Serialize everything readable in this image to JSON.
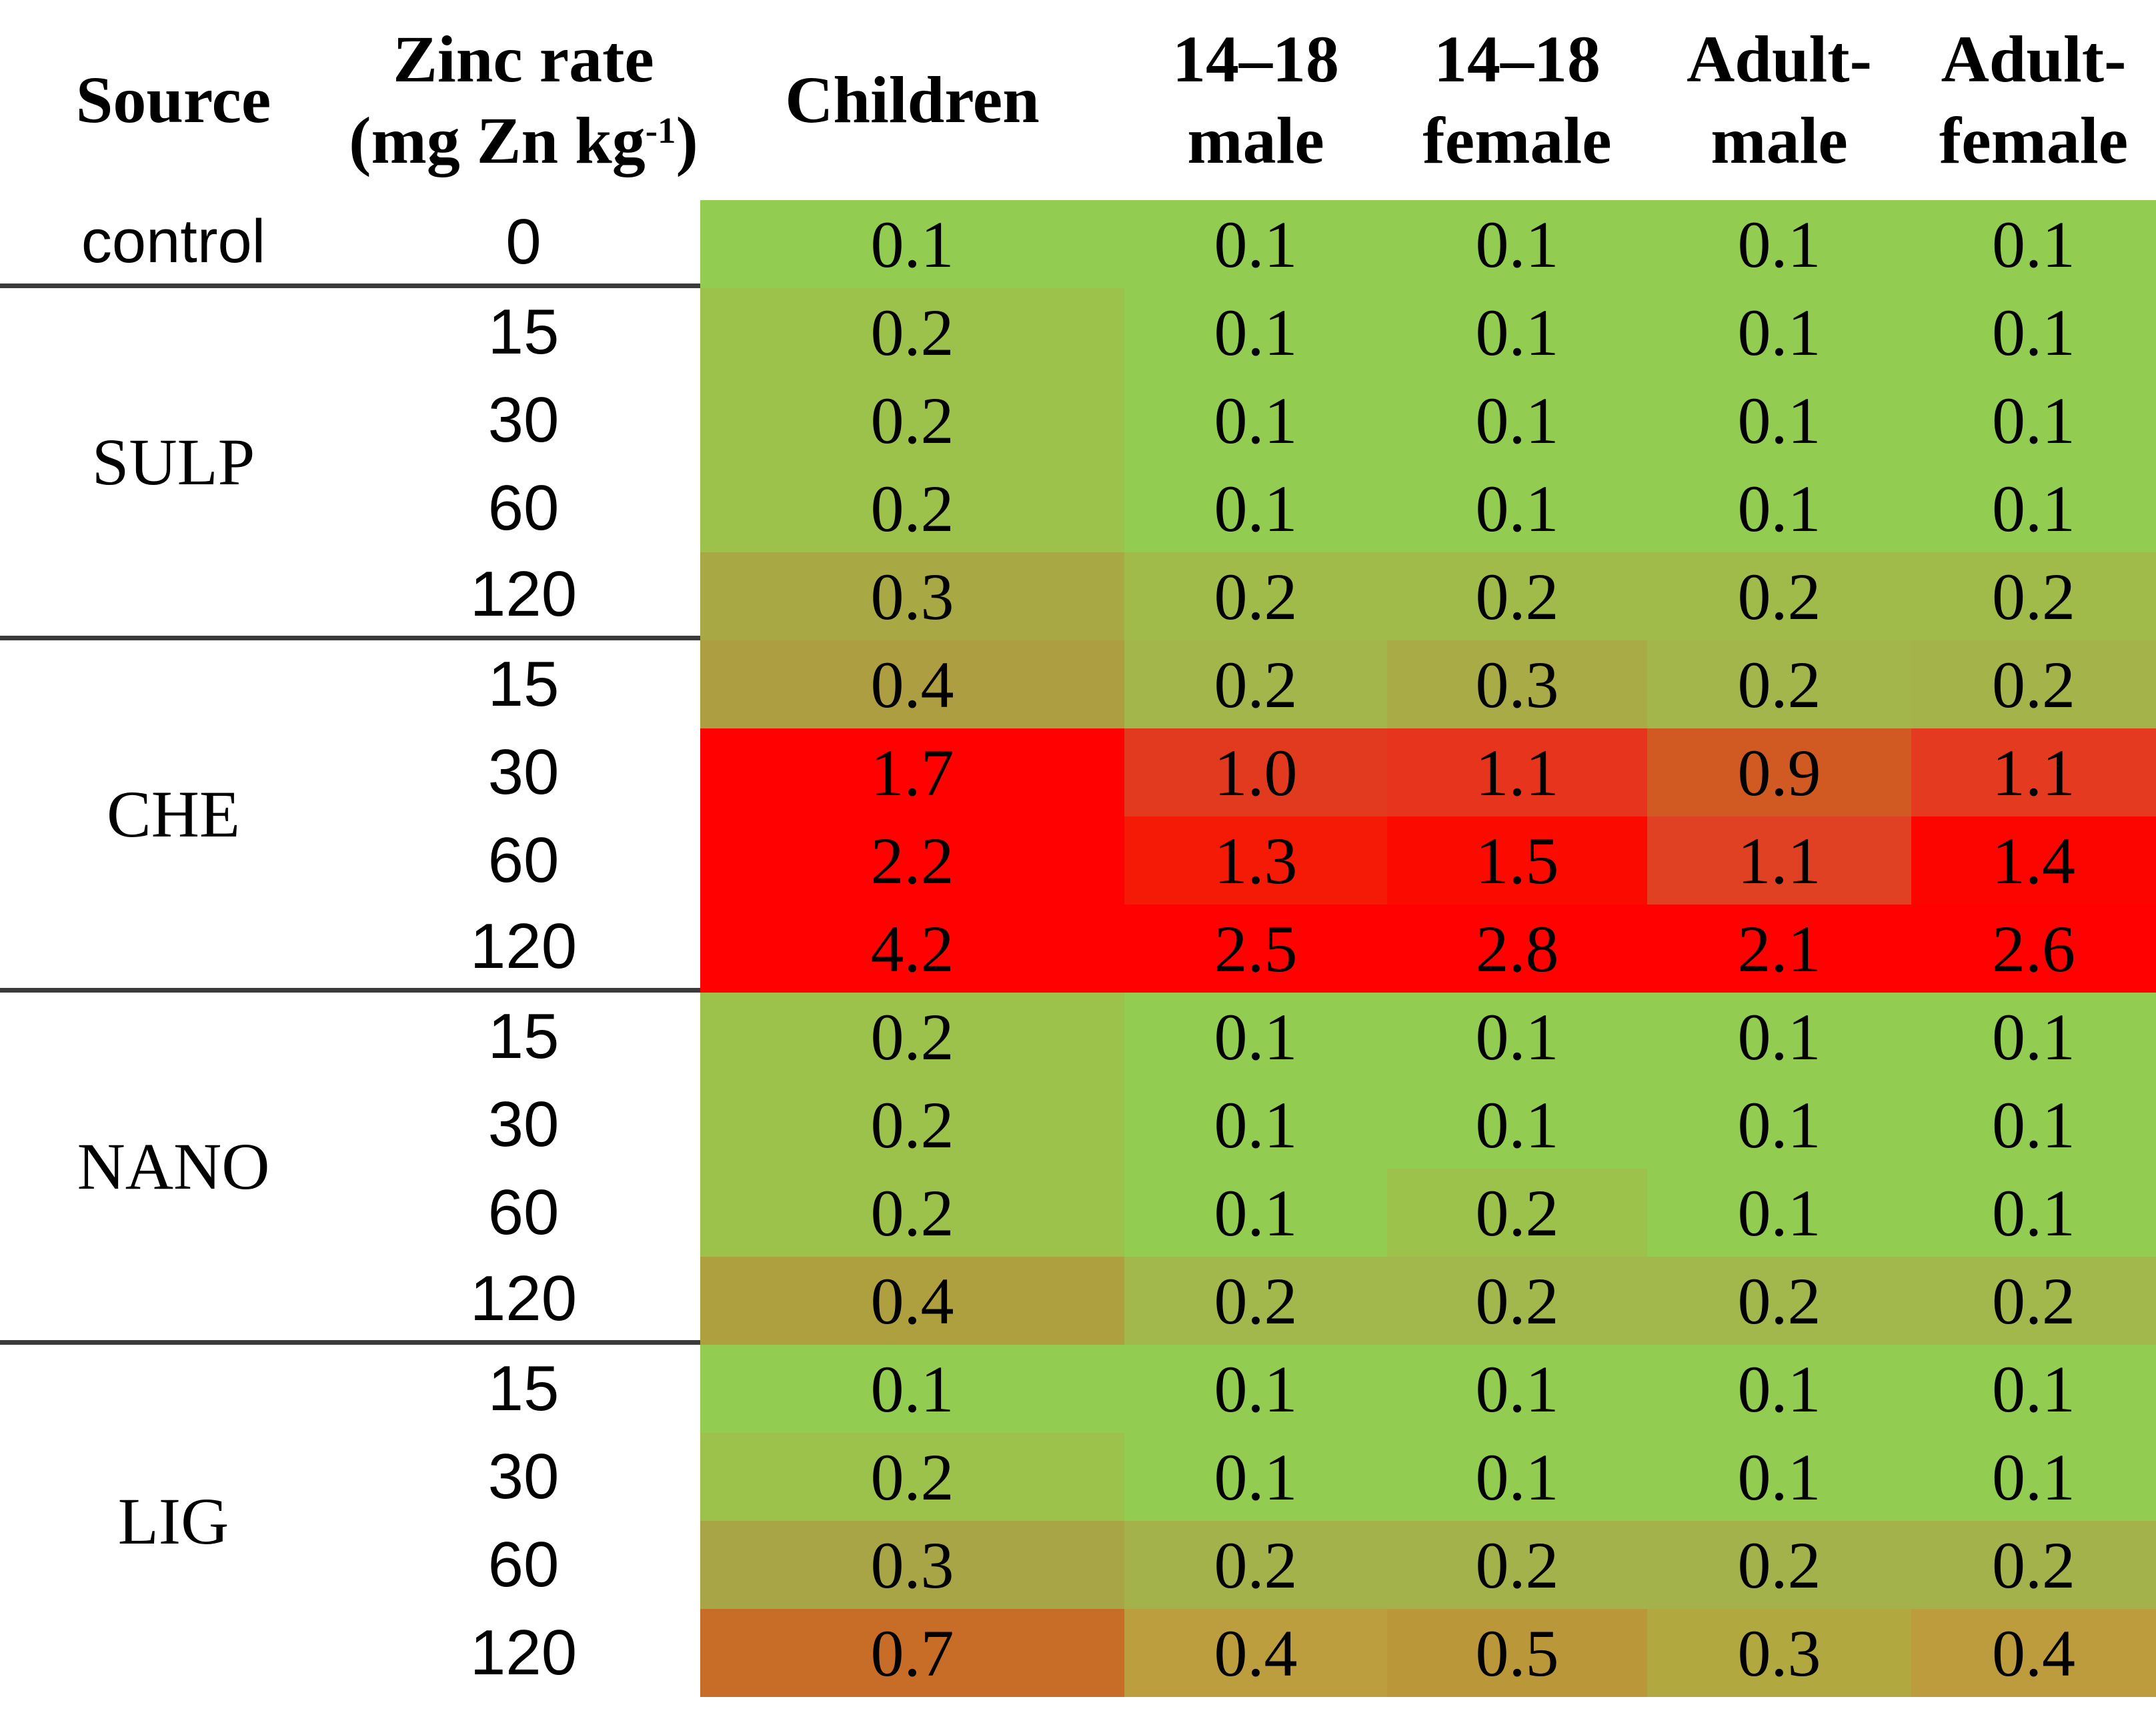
{
  "table": {
    "headers": {
      "source": "Source",
      "zinc_rate": {
        "line1": "Zinc rate",
        "unit_pre": "(mg Zn kg",
        "unit_sup": "-1",
        "unit_post": ")"
      },
      "children": "Children",
      "male_14_18": {
        "line1": "14–18",
        "line2": "male"
      },
      "female_14_18": {
        "line1": "14–18",
        "line2": "female"
      },
      "adult_male": {
        "line1": "Adult-",
        "line2": "male"
      },
      "adult_female": {
        "line1": "Adult-",
        "line2": "female"
      }
    },
    "groups": [
      {
        "source": "control",
        "source_font": "sans",
        "separator_after": true,
        "rows": [
          {
            "rate": "0",
            "cells": [
              {
                "v": "0.1",
                "bg": "#92CC50"
              },
              {
                "v": "0.1",
                "bg": "#92CC50"
              },
              {
                "v": "0.1",
                "bg": "#92CC50"
              },
              {
                "v": "0.1",
                "bg": "#92CC50"
              },
              {
                "v": "0.1",
                "bg": "#92CC50"
              }
            ]
          }
        ]
      },
      {
        "source": "SULP",
        "source_font": "serif",
        "separator_after": true,
        "rows": [
          {
            "rate": "15",
            "cells": [
              {
                "v": "0.2",
                "bg": "#9CC24C"
              },
              {
                "v": "0.1",
                "bg": "#92CC50"
              },
              {
                "v": "0.1",
                "bg": "#92CC50"
              },
              {
                "v": "0.1",
                "bg": "#92CC50"
              },
              {
                "v": "0.1",
                "bg": "#92CC50"
              }
            ]
          },
          {
            "rate": "30",
            "cells": [
              {
                "v": "0.2",
                "bg": "#9CC24C"
              },
              {
                "v": "0.1",
                "bg": "#92CC50"
              },
              {
                "v": "0.1",
                "bg": "#92CC50"
              },
              {
                "v": "0.1",
                "bg": "#92CC50"
              },
              {
                "v": "0.1",
                "bg": "#92CC50"
              }
            ]
          },
          {
            "rate": "60",
            "cells": [
              {
                "v": "0.2",
                "bg": "#9CC24C"
              },
              {
                "v": "0.1",
                "bg": "#92CC50"
              },
              {
                "v": "0.1",
                "bg": "#92CC50"
              },
              {
                "v": "0.1",
                "bg": "#92CC50"
              },
              {
                "v": "0.1",
                "bg": "#92CC50"
              }
            ]
          },
          {
            "rate": "120",
            "cells": [
              {
                "v": "0.3",
                "bg": "#A8A945"
              },
              {
                "v": "0.2",
                "bg": "#A0BB4A"
              },
              {
                "v": "0.2",
                "bg": "#A0BB4A"
              },
              {
                "v": "0.2",
                "bg": "#A0BB4A"
              },
              {
                "v": "0.2",
                "bg": "#A0BB4A"
              }
            ]
          }
        ]
      },
      {
        "source": "CHE",
        "source_font": "serif",
        "separator_after": true,
        "rows": [
          {
            "rate": "15",
            "cells": [
              {
                "v": "0.4",
                "bg": "#AC9E41"
              },
              {
                "v": "0.2",
                "bg": "#A3B64B"
              },
              {
                "v": "0.3",
                "bg": "#A9AB46"
              },
              {
                "v": "0.2",
                "bg": "#A3B64B"
              },
              {
                "v": "0.2",
                "bg": "#A4B44A"
              }
            ]
          },
          {
            "rate": "30",
            "cells": [
              {
                "v": "1.7",
                "bg": "#FE0100"
              },
              {
                "v": "1.0",
                "bg": "#E23A1E"
              },
              {
                "v": "1.1",
                "bg": "#E7341C"
              },
              {
                "v": "0.9",
                "bg": "#D05A22"
              },
              {
                "v": "1.1",
                "bg": "#E43A20"
              }
            ]
          },
          {
            "rate": "60",
            "cells": [
              {
                "v": "2.2",
                "bg": "#FE0100"
              },
              {
                "v": "1.3",
                "bg": "#F41A06"
              },
              {
                "v": "1.5",
                "bg": "#FB0A00"
              },
              {
                "v": "1.1",
                "bg": "#E04122"
              },
              {
                "v": "1.4",
                "bg": "#FC0500"
              }
            ]
          },
          {
            "rate": "120",
            "cells": [
              {
                "v": "4.2",
                "bg": "#FE0100"
              },
              {
                "v": "2.5",
                "bg": "#FE0100"
              },
              {
                "v": "2.8",
                "bg": "#FE0100"
              },
              {
                "v": "2.1",
                "bg": "#FE0100"
              },
              {
                "v": "2.6",
                "bg": "#FE0100"
              }
            ]
          }
        ]
      },
      {
        "source": "NANO",
        "source_font": "serif",
        "separator_after": true,
        "rows": [
          {
            "rate": "15",
            "cells": [
              {
                "v": "0.2",
                "bg": "#9CC24C"
              },
              {
                "v": "0.1",
                "bg": "#92CC50"
              },
              {
                "v": "0.1",
                "bg": "#92CC50"
              },
              {
                "v": "0.1",
                "bg": "#92CC50"
              },
              {
                "v": "0.1",
                "bg": "#92CC50"
              }
            ]
          },
          {
            "rate": "30",
            "cells": [
              {
                "v": "0.2",
                "bg": "#9CC24C"
              },
              {
                "v": "0.1",
                "bg": "#92CC50"
              },
              {
                "v": "0.1",
                "bg": "#92CC50"
              },
              {
                "v": "0.1",
                "bg": "#92CC50"
              },
              {
                "v": "0.1",
                "bg": "#92CC50"
              }
            ]
          },
          {
            "rate": "60",
            "cells": [
              {
                "v": "0.2",
                "bg": "#9CC24C"
              },
              {
                "v": "0.1",
                "bg": "#92CC50"
              },
              {
                "v": "0.2",
                "bg": "#9CC24C"
              },
              {
                "v": "0.1",
                "bg": "#92CC50"
              },
              {
                "v": "0.1",
                "bg": "#92CC50"
              }
            ]
          },
          {
            "rate": "120",
            "cells": [
              {
                "v": "0.4",
                "bg": "#AFA03F"
              },
              {
                "v": "0.2",
                "bg": "#A3B84C"
              },
              {
                "v": "0.2",
                "bg": "#A3B84C"
              },
              {
                "v": "0.2",
                "bg": "#A3B84C"
              },
              {
                "v": "0.2",
                "bg": "#A3B84C"
              }
            ]
          }
        ]
      },
      {
        "source": "LIG",
        "source_font": "serif",
        "separator_after": false,
        "rows": [
          {
            "rate": "15",
            "cells": [
              {
                "v": "0.1",
                "bg": "#92CC50"
              },
              {
                "v": "0.1",
                "bg": "#92CC50"
              },
              {
                "v": "0.1",
                "bg": "#92CC50"
              },
              {
                "v": "0.1",
                "bg": "#92CC50"
              },
              {
                "v": "0.1",
                "bg": "#92CC50"
              }
            ]
          },
          {
            "rate": "30",
            "cells": [
              {
                "v": "0.2",
                "bg": "#9CC24C"
              },
              {
                "v": "0.1",
                "bg": "#92CC50"
              },
              {
                "v": "0.1",
                "bg": "#92CC50"
              },
              {
                "v": "0.1",
                "bg": "#92CC50"
              },
              {
                "v": "0.1",
                "bg": "#92CC50"
              }
            ]
          },
          {
            "rate": "60",
            "cells": [
              {
                "v": "0.3",
                "bg": "#A8A546"
              },
              {
                "v": "0.2",
                "bg": "#A4B24B"
              },
              {
                "v": "0.2",
                "bg": "#A4B24B"
              },
              {
                "v": "0.2",
                "bg": "#A4B24B"
              },
              {
                "v": "0.2",
                "bg": "#A4B24B"
              }
            ]
          },
          {
            "rate": "120",
            "cells": [
              {
                "v": "0.7",
                "bg": "#C76D28"
              },
              {
                "v": "0.4",
                "bg": "#BD9E3F"
              },
              {
                "v": "0.5",
                "bg": "#BA9839"
              },
              {
                "v": "0.3",
                "bg": "#B2A840"
              },
              {
                "v": "0.4",
                "bg": "#BC9C3D"
              }
            ]
          }
        ]
      }
    ]
  },
  "chart_data": {
    "type": "heatmap",
    "columns": [
      "Children",
      "14–18 male",
      "14–18 female",
      "Adult-male",
      "Adult-female"
    ],
    "row_header_labels": [
      "Source",
      "Zinc rate (mg Zn kg-1)"
    ],
    "rows": [
      {
        "source": "control",
        "rate": 0,
        "values": [
          0.1,
          0.1,
          0.1,
          0.1,
          0.1
        ]
      },
      {
        "source": "SULP",
        "rate": 15,
        "values": [
          0.2,
          0.1,
          0.1,
          0.1,
          0.1
        ]
      },
      {
        "source": "SULP",
        "rate": 30,
        "values": [
          0.2,
          0.1,
          0.1,
          0.1,
          0.1
        ]
      },
      {
        "source": "SULP",
        "rate": 60,
        "values": [
          0.2,
          0.1,
          0.1,
          0.1,
          0.1
        ]
      },
      {
        "source": "SULP",
        "rate": 120,
        "values": [
          0.3,
          0.2,
          0.2,
          0.2,
          0.2
        ]
      },
      {
        "source": "CHE",
        "rate": 15,
        "values": [
          0.4,
          0.2,
          0.3,
          0.2,
          0.2
        ]
      },
      {
        "source": "CHE",
        "rate": 30,
        "values": [
          1.7,
          1.0,
          1.1,
          0.9,
          1.1
        ]
      },
      {
        "source": "CHE",
        "rate": 60,
        "values": [
          2.2,
          1.3,
          1.5,
          1.1,
          1.4
        ]
      },
      {
        "source": "CHE",
        "rate": 120,
        "values": [
          4.2,
          2.5,
          2.8,
          2.1,
          2.6
        ]
      },
      {
        "source": "NANO",
        "rate": 15,
        "values": [
          0.2,
          0.1,
          0.1,
          0.1,
          0.1
        ]
      },
      {
        "source": "NANO",
        "rate": 30,
        "values": [
          0.2,
          0.1,
          0.1,
          0.1,
          0.1
        ]
      },
      {
        "source": "NANO",
        "rate": 60,
        "values": [
          0.2,
          0.1,
          0.2,
          0.1,
          0.1
        ]
      },
      {
        "source": "NANO",
        "rate": 120,
        "values": [
          0.4,
          0.2,
          0.2,
          0.2,
          0.2
        ]
      },
      {
        "source": "LIG",
        "rate": 15,
        "values": [
          0.1,
          0.1,
          0.1,
          0.1,
          0.1
        ]
      },
      {
        "source": "LIG",
        "rate": 30,
        "values": [
          0.2,
          0.1,
          0.1,
          0.1,
          0.1
        ]
      },
      {
        "source": "LIG",
        "rate": 60,
        "values": [
          0.3,
          0.2,
          0.2,
          0.2,
          0.2
        ]
      },
      {
        "source": "LIG",
        "rate": 120,
        "values": [
          0.7,
          0.4,
          0.5,
          0.3,
          0.4
        ]
      }
    ],
    "color_scale": {
      "low_color": "#92CC50",
      "mid_color": "#ADA040",
      "high_color": "#FE0100",
      "low_value": 0.1,
      "high_value": 4.2
    },
    "legend_position": "none",
    "grid": false
  }
}
